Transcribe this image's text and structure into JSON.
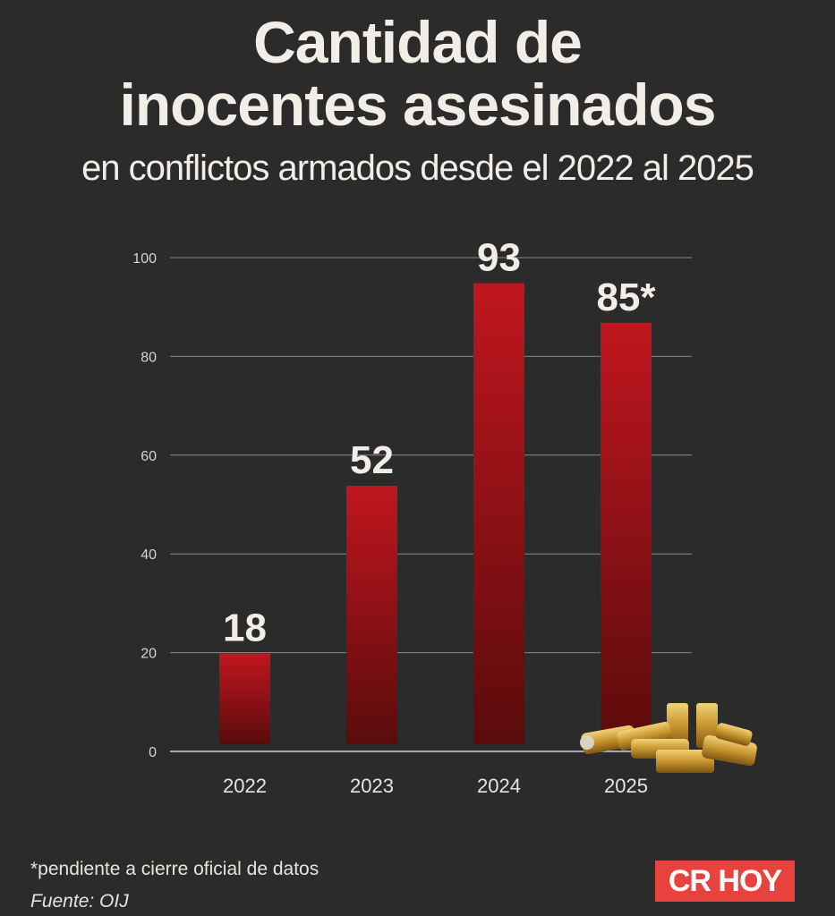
{
  "header": {
    "title_line1": "Cantidad de",
    "title_line2": "inocentes asesinados",
    "subtitle": "en conflictos armados desde el 2022 al 2025"
  },
  "chart_data": {
    "type": "bar",
    "title": "Cantidad de inocentes asesinados",
    "subtitle": "en conflictos armados desde el 2022 al 2025",
    "categories": [
      "2022",
      "2023",
      "2024",
      "2025"
    ],
    "values": [
      18,
      52,
      93,
      85
    ],
    "data_labels": [
      "18",
      "52",
      "93",
      "85*"
    ],
    "yticks": [
      0,
      20,
      40,
      60,
      80,
      100
    ],
    "ylim": [
      0,
      100
    ],
    "xlabel": "",
    "ylabel": "",
    "grid": true,
    "colors": {
      "bar_top": "#c0161f",
      "bar_bottom": "#5a0b0b",
      "grid": "#8a8a8a",
      "text": "#f2ede6"
    }
  },
  "footer": {
    "note": "*pendiente a cierre oficial de datos",
    "source": "Fuente: OIJ",
    "logo": "CR HOY"
  }
}
